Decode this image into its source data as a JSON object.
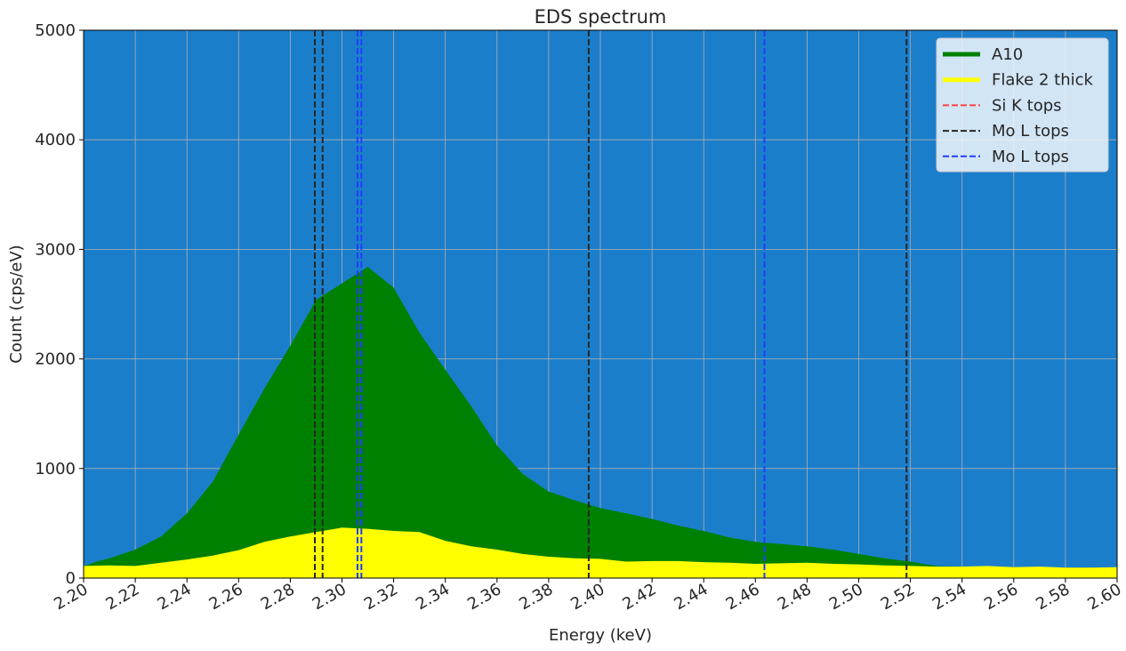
{
  "colors": {
    "plot_bg": "#1b7ecb",
    "grid": "#b0b0b0",
    "series_A10": "#008000",
    "series_flake": "#ffff00",
    "si_k": "#ff4040",
    "mo_l_black": "#262626",
    "mo_l_blue": "#1f3fff"
  },
  "chart_data": {
    "type": "area",
    "title": "EDS spectrum",
    "xlabel": "Energy (keV)",
    "ylabel": "Count (cps/eV)",
    "xlim": [
      2.2,
      2.6
    ],
    "ylim": [
      0,
      5000
    ],
    "grid": true,
    "legend_position": "top-right",
    "x_ticks": [
      "2.20",
      "2.22",
      "2.24",
      "2.26",
      "2.28",
      "2.30",
      "2.32",
      "2.34",
      "2.36",
      "2.38",
      "2.40",
      "2.42",
      "2.44",
      "2.46",
      "2.48",
      "2.50",
      "2.52",
      "2.54",
      "2.56",
      "2.58",
      "2.60"
    ],
    "y_ticks": [
      "0",
      "1000",
      "2000",
      "3000",
      "4000",
      "5000"
    ],
    "series": [
      {
        "name": "A10",
        "x": [
          2.2,
          2.205,
          2.21,
          2.22,
          2.23,
          2.24,
          2.25,
          2.26,
          2.27,
          2.28,
          2.29,
          2.3,
          2.31,
          2.32,
          2.33,
          2.34,
          2.35,
          2.36,
          2.37,
          2.38,
          2.39,
          2.4,
          2.41,
          2.42,
          2.43,
          2.44,
          2.45,
          2.46,
          2.47,
          2.48,
          2.49,
          2.5,
          2.51,
          2.52,
          2.53,
          2.54,
          2.55,
          2.56,
          2.57,
          2.58,
          2.59,
          2.6
        ],
        "values": [
          110,
          150,
          180,
          260,
          380,
          590,
          880,
          1310,
          1730,
          2120,
          2540,
          2690,
          2840,
          2650,
          2240,
          1900,
          1570,
          1210,
          950,
          790,
          710,
          640,
          590,
          540,
          480,
          430,
          370,
          330,
          310,
          290,
          260,
          220,
          180,
          150,
          110,
          105,
          100,
          100,
          95,
          95,
          95,
          95
        ]
      },
      {
        "name": "Flake 2 thick",
        "x": [
          2.2,
          2.21,
          2.22,
          2.23,
          2.24,
          2.25,
          2.26,
          2.27,
          2.28,
          2.29,
          2.3,
          2.31,
          2.32,
          2.33,
          2.34,
          2.35,
          2.36,
          2.37,
          2.38,
          2.39,
          2.4,
          2.41,
          2.42,
          2.43,
          2.44,
          2.45,
          2.46,
          2.47,
          2.48,
          2.49,
          2.5,
          2.51,
          2.52,
          2.53,
          2.54,
          2.55,
          2.56,
          2.57,
          2.58,
          2.59,
          2.6
        ],
        "values": [
          110,
          115,
          110,
          140,
          170,
          205,
          255,
          330,
          380,
          420,
          460,
          450,
          430,
          420,
          340,
          290,
          260,
          220,
          195,
          180,
          175,
          150,
          155,
          155,
          145,
          140,
          130,
          135,
          140,
          130,
          125,
          115,
          110,
          105,
          105,
          110,
          100,
          105,
          95,
          95,
          100
        ]
      }
    ],
    "vlines": [
      {
        "name": "Si K tops",
        "color": "#ff4040",
        "x": []
      },
      {
        "name": "Mo L tops",
        "color": "#262626",
        "x": [
          2.2895,
          2.2925,
          2.3955,
          2.5185
        ]
      },
      {
        "name": "Mo L tops",
        "color": "#1f3fff",
        "x": [
          2.306,
          2.3075,
          2.4635
        ]
      }
    ]
  }
}
